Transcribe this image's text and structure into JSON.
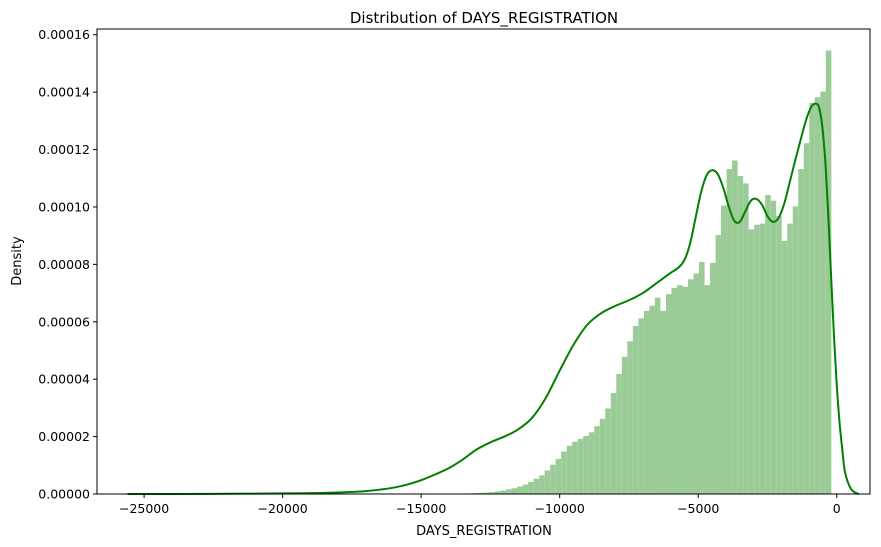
{
  "chart_data": {
    "type": "bar",
    "title": "Distribution of DAYS_REGISTRATION",
    "xlabel": "DAYS_REGISTRATION",
    "ylabel": "Density",
    "xlim": [
      -26700,
      1200
    ],
    "ylim": [
      0,
      0.000162
    ],
    "xticks": [
      -25000,
      -20000,
      -15000,
      -10000,
      -5000,
      0
    ],
    "xtick_labels": [
      "−25000",
      "−20000",
      "−15000",
      "−10000",
      "−5000",
      "0"
    ],
    "yticks": [
      0,
      2e-05,
      4e-05,
      6e-05,
      8e-05,
      0.0001,
      0.00012,
      0.00014,
      0.00016
    ],
    "ytick_labels": [
      "0.00000",
      "0.00002",
      "0.00004",
      "0.00006",
      "0.00008",
      "0.00010",
      "0.00012",
      "0.00014",
      "0.00016"
    ],
    "grid": false,
    "colors": {
      "bars": "#9bcb97",
      "kde": "#008000",
      "axes": "#000000"
    },
    "histogram": {
      "bin_start": -24672,
      "bin_width": 199,
      "values": [
        0,
        0,
        0,
        0,
        0,
        0,
        0,
        0,
        0,
        0,
        0,
        0,
        0,
        0,
        0,
        0,
        0,
        0,
        0,
        0,
        0,
        0,
        0,
        0,
        0,
        0,
        0,
        0,
        0,
        0,
        0,
        0,
        0,
        0,
        0,
        0,
        0,
        0,
        0,
        0,
        0,
        0,
        0,
        0,
        0,
        0,
        0,
        0,
        0,
        0,
        0,
        0,
        0,
        0,
        0,
        0,
        0,
        2e-07,
        3e-07,
        4e-07,
        5e-07,
        7e-07,
        9e-07,
        1.2e-06,
        1.6e-06,
        2e-06,
        2.6e-06,
        3.3e-06,
        4.2e-06,
        5.3e-06,
        6.5e-06,
        8.2e-06,
        1.02e-05,
        1.22e-05,
        1.48e-05,
        1.68e-05,
        1.82e-05,
        1.92e-05,
        2.02e-05,
        2.15e-05,
        2.36e-05,
        2.62e-05,
        2.98e-05,
        3.52e-05,
        4.18e-05,
        4.78e-05,
        5.32e-05,
        5.85e-05,
        6.12e-05,
        6.38e-05,
        6.56e-05,
        6.84e-05,
        6.38e-05,
        6.96e-05,
        7.18e-05,
        7.28e-05,
        7.22e-05,
        7.48e-05,
        7.68e-05,
        8.08e-05,
        7.28e-05,
        8.05e-05,
        9.02e-05,
        0.0001005,
        0.0001132,
        0.0001162,
        0.0001108,
        0.0001082,
        9.22e-05,
        9.38e-05,
        9.42e-05,
        0.0001042,
        0.0001022,
        9.68e-05,
        8.82e-05,
        9.42e-05,
        0.0001002,
        0.0001132,
        0.0001222,
        0.0001362,
        0.0001382,
        0.0001402,
        0.0001545
      ]
    },
    "kde": {
      "x": [
        -25600,
        -24000,
        -22000,
        -20000,
        -19000,
        -18000,
        -17500,
        -17000,
        -16500,
        -16000,
        -15500,
        -15000,
        -14500,
        -14000,
        -13500,
        -13000,
        -12500,
        -12000,
        -11500,
        -11000,
        -10500,
        -10000,
        -9500,
        -9000,
        -8500,
        -8000,
        -7500,
        -7000,
        -6500,
        -6000,
        -5700,
        -5500,
        -5300,
        -5100,
        -4900,
        -4700,
        -4500,
        -4300,
        -4100,
        -3900,
        -3700,
        -3500,
        -3300,
        -3100,
        -2900,
        -2700,
        -2500,
        -2300,
        -2100,
        -1900,
        -1700,
        -1500,
        -1300,
        -1100,
        -900,
        -700,
        -600,
        -500,
        -400,
        -300,
        -200,
        -100,
        0,
        100,
        200,
        300,
        500,
        700,
        800
      ],
      "y": [
        0,
        0,
        1e-07,
        2e-07,
        3e-07,
        5e-07,
        7e-07,
        1e-06,
        1.5e-06,
        2.2e-06,
        3.3e-06,
        4.8e-06,
        6.8e-06,
        9e-06,
        1.2e-05,
        1.55e-05,
        1.8e-05,
        2e-05,
        2.25e-05,
        2.65e-05,
        3.35e-05,
        4.3e-05,
        5.2e-05,
        5.9e-05,
        6.3e-05,
        6.55e-05,
        6.75e-05,
        7e-05,
        7.35e-05,
        7.7e-05,
        7.9e-05,
        8.15e-05,
        8.7e-05,
        9.6e-05,
        0.000105,
        0.000111,
        0.0001128,
        0.0001115,
        0.0001068,
        0.0001002,
        9.52e-05,
        9.48e-05,
        9.85e-05,
        0.0001022,
        0.0001028,
        0.0001008,
        9.68e-05,
        9.48e-05,
        9.62e-05,
        0.000101,
        0.0001085,
        0.0001162,
        0.0001235,
        0.0001305,
        0.0001352,
        0.0001358,
        0.000133,
        0.000126,
        0.000114,
        9.6e-05,
        7.5e-05,
        5.5e-05,
        3.8e-05,
        2.5e-05,
        1.55e-05,
        7.5e-06,
        2e-06,
        3e-07,
        0
      ]
    }
  }
}
